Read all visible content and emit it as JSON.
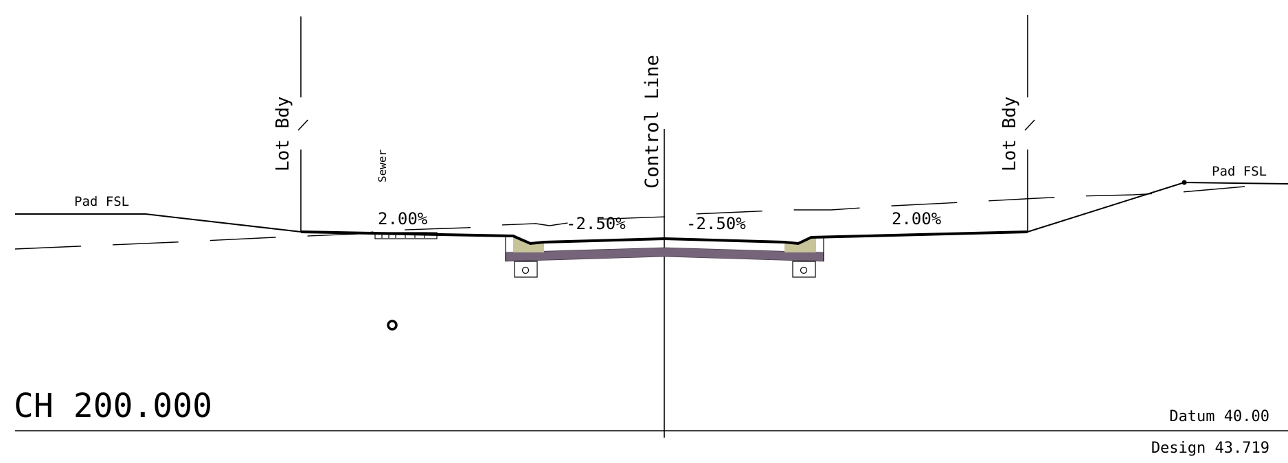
{
  "labels": {
    "pad_fsl_left": "Pad FSL",
    "pad_fsl_right": "Pad FSL",
    "lot_bdy_left": "Lot Bdy",
    "lot_bdy_right": "Lot Bdy",
    "sewer": "Sewer",
    "control_line": "Control Line",
    "grade_left_verge": "2.00%",
    "grade_left_road": "-2.50%",
    "grade_right_road": "-2.50%",
    "grade_right_verge": "2.00%",
    "chainage": "CH 200.000",
    "datum": "Datum 40.00",
    "design": "Design 43.719"
  },
  "colors": {
    "line": "#000000",
    "pavement": "#76657a",
    "kerb_fill": "#c8c49a"
  }
}
